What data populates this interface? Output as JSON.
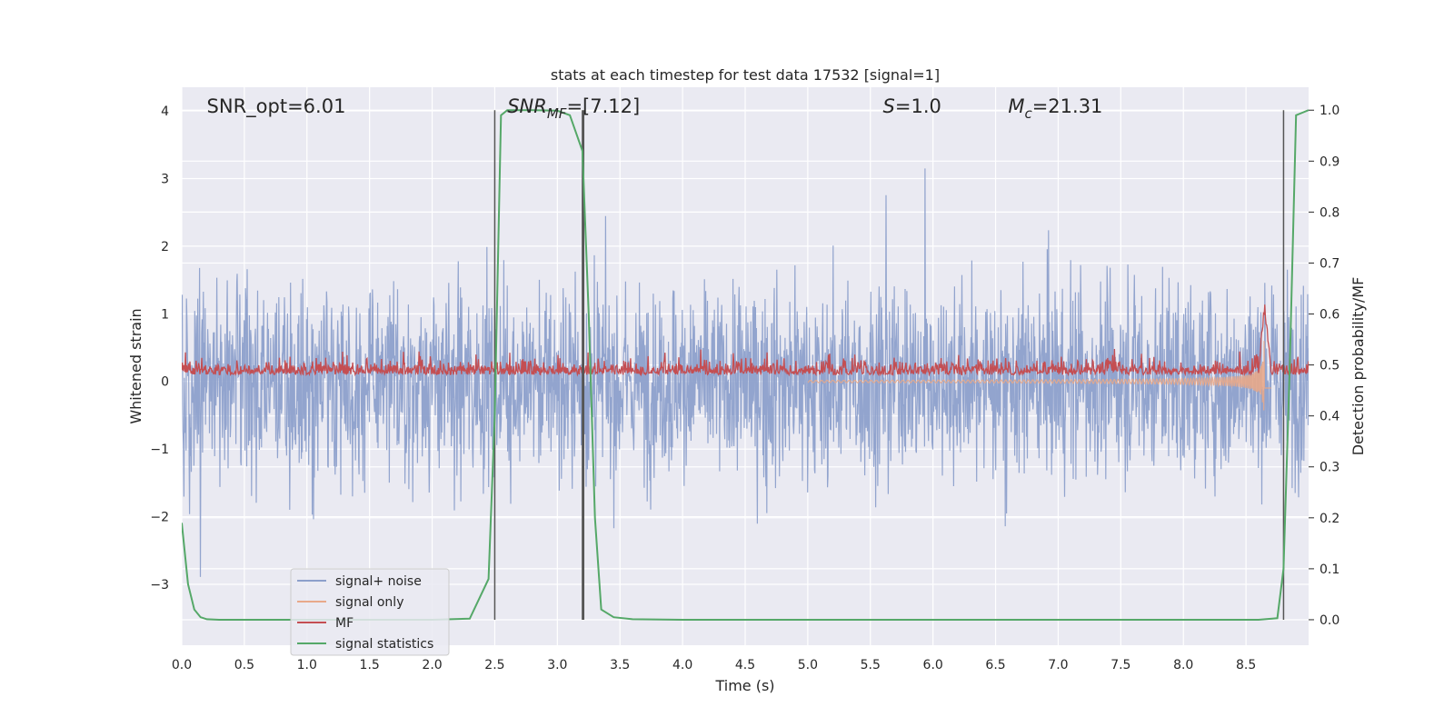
{
  "chart_data": {
    "type": "line",
    "title": "stats at each timestep for test data 17532 [signal=1]",
    "xlabel": "Time (s)",
    "ylabel": "Whitened strain",
    "ylabel_right": "Detection probability/MF",
    "xlim": [
      0.0,
      9.0
    ],
    "ylim": [
      -3.9,
      4.35
    ],
    "ylim_right": [
      -0.05,
      1.045
    ],
    "x_ticks": [
      "0.0",
      "0.5",
      "1.0",
      "1.5",
      "2.0",
      "2.5",
      "3.0",
      "3.5",
      "4.0",
      "4.5",
      "5.0",
      "5.5",
      "6.0",
      "6.5",
      "7.0",
      "7.5",
      "8.0",
      "8.5"
    ],
    "x_tick_values": [
      0.0,
      0.5,
      1.0,
      1.5,
      2.0,
      2.5,
      3.0,
      3.5,
      4.0,
      4.5,
      5.0,
      5.5,
      6.0,
      6.5,
      7.0,
      7.5,
      8.0,
      8.5
    ],
    "y_ticks": [
      "−3",
      "−2",
      "−1",
      "0",
      "1",
      "2",
      "3",
      "4"
    ],
    "y_tick_values": [
      -3,
      -2,
      -1,
      0,
      1,
      2,
      3,
      4
    ],
    "y_right_ticks": [
      "0.0",
      "0.1",
      "0.2",
      "0.3",
      "0.4",
      "0.5",
      "0.6",
      "0.7",
      "0.8",
      "0.9",
      "1.0"
    ],
    "y_right_tick_values": [
      0.0,
      0.1,
      0.2,
      0.3,
      0.4,
      0.5,
      0.6,
      0.7,
      0.8,
      0.9,
      1.0
    ],
    "grid": true,
    "legend_position": "lower-left",
    "annotations": [
      {
        "text": "SNR_opt=6.01",
        "x": 0.2,
        "y": 4.0
      },
      {
        "text": "SNR_MF=[7.12]",
        "x": 2.6,
        "y": 4.0
      },
      {
        "text": "S=1.0",
        "x": 5.6,
        "y": 4.0
      },
      {
        "text": "M_c=21.31",
        "x": 6.6,
        "y": 4.0
      }
    ],
    "vertical_lines_x": [
      2.5,
      3.2,
      3.21,
      8.8
    ],
    "series": [
      {
        "name": "signal+ noise",
        "color": "#8da0cb",
        "axis": "left",
        "kind": "noise",
        "std": 0.9,
        "x_range": [
          0.0,
          9.0
        ]
      },
      {
        "name": "signal only",
        "color": "#e8a98a",
        "axis": "left",
        "kind": "chirp",
        "peak_x": 8.65,
        "peak_amp": 1.2
      },
      {
        "name": "MF",
        "color": "#c44e52",
        "axis": "left",
        "kind": "mf",
        "baseline": 0.15,
        "peak_x": 8.65,
        "peak_y": 1.3
      },
      {
        "name": "signal statistics",
        "color": "#55a868",
        "axis": "right",
        "x": [
          0.0,
          0.05,
          0.1,
          0.15,
          0.2,
          0.3,
          0.5,
          1.0,
          1.5,
          2.0,
          2.3,
          2.45,
          2.5,
          2.55,
          2.6,
          2.7,
          2.8,
          3.0,
          3.1,
          3.2,
          3.25,
          3.3,
          3.35,
          3.45,
          3.6,
          4.0,
          5.0,
          6.0,
          7.0,
          8.0,
          8.6,
          8.75,
          8.8,
          8.85,
          8.9,
          8.95,
          9.0
        ],
        "y": [
          0.19,
          0.07,
          0.02,
          0.005,
          0.001,
          0.0,
          0.0,
          0.0,
          0.0,
          0.0,
          0.002,
          0.08,
          0.4,
          0.99,
          1.0,
          1.0,
          1.0,
          0.999,
          0.99,
          0.92,
          0.6,
          0.2,
          0.02,
          0.005,
          0.001,
          0.0,
          0.0,
          0.0,
          0.0,
          0.0,
          0.0,
          0.003,
          0.1,
          0.5,
          0.99,
          0.995,
          1.0
        ]
      }
    ]
  }
}
